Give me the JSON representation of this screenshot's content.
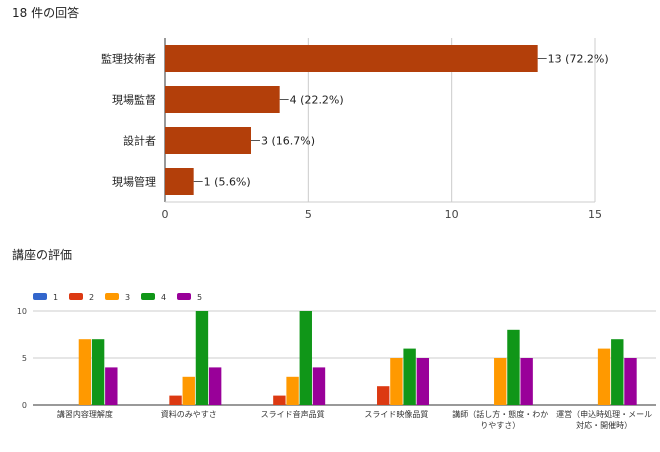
{
  "response_count_label": "18 件の回答",
  "section2_title": "講座の評価",
  "chart_data": [
    {
      "type": "bar",
      "orientation": "horizontal",
      "categories": [
        "監理技術者",
        "現場監督",
        "設計者",
        "現場管理"
      ],
      "values": [
        13,
        4,
        3,
        1
      ],
      "data_labels": [
        "13 (72.2%)",
        "4 (22.2%)",
        "3 (16.7%)",
        "1 (5.6%)"
      ],
      "xlim": [
        0,
        15
      ],
      "x_ticks": [
        "0",
        "5",
        "10",
        "15"
      ],
      "color": "#b33f0a",
      "grid": true
    },
    {
      "type": "bar",
      "orientation": "vertical",
      "categories": [
        [
          "講習内容理解度"
        ],
        [
          "資料のみやすさ"
        ],
        [
          "スライド音声品質"
        ],
        [
          "スライド映像品質"
        ],
        [
          "講師（話し方・態度・わか",
          "りやすさ）"
        ],
        [
          "運営（申込時処理・メール",
          "対応・開催時）"
        ]
      ],
      "series": [
        {
          "name": "1",
          "color": "#3366cc",
          "values": [
            0,
            0,
            0,
            0,
            0,
            0
          ]
        },
        {
          "name": "2",
          "color": "#dc3912",
          "values": [
            0,
            1,
            1,
            2,
            0,
            0
          ]
        },
        {
          "name": "3",
          "color": "#ff9900",
          "values": [
            7,
            3,
            3,
            5,
            5,
            6
          ]
        },
        {
          "name": "4",
          "color": "#109618",
          "values": [
            7,
            10,
            10,
            6,
            8,
            7
          ]
        },
        {
          "name": "5",
          "color": "#990099",
          "values": [
            4,
            4,
            4,
            5,
            5,
            5
          ]
        }
      ],
      "ylim": [
        0,
        10
      ],
      "y_ticks": [
        "0",
        "5",
        "10"
      ],
      "legend_position": "top-left",
      "grid": true
    }
  ]
}
